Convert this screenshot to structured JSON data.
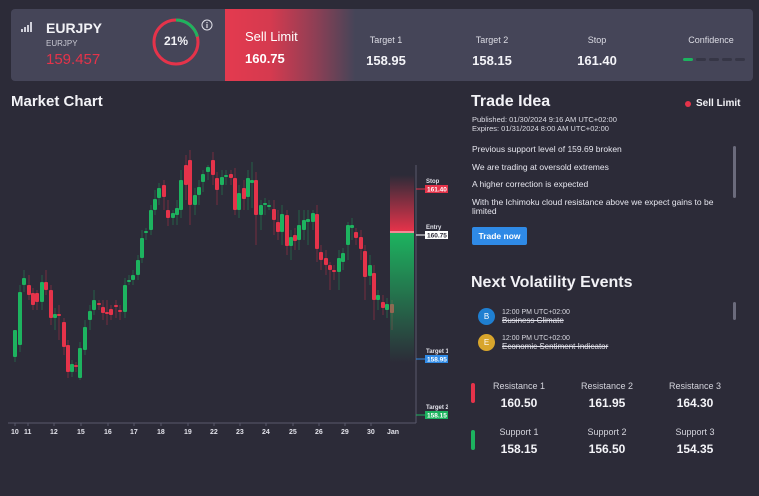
{
  "header": {
    "symbol": "EURJPY",
    "symbol_sub": "EURJPY",
    "price": "159.457",
    "gauge_percent": "21%",
    "gauge_value": 21,
    "order_type": "Sell Limit",
    "entry": "160.75",
    "metrics": [
      {
        "label": "Target 1",
        "value": "158.95"
      },
      {
        "label": "Target 2",
        "value": "158.15"
      },
      {
        "label": "Stop",
        "value": "161.40"
      }
    ],
    "confidence_label": "Confidence",
    "confidence_level": 1,
    "confidence_max": 5
  },
  "market_chart": {
    "title": "Market Chart",
    "x_labels": [
      "10",
      "11",
      "12",
      "15",
      "16",
      "17",
      "18",
      "19",
      "22",
      "23",
      "24",
      "25",
      "26",
      "29",
      "30",
      "Jan"
    ],
    "price_tags": [
      {
        "label": "Stop",
        "value": "161.40",
        "color": "#e5334a"
      },
      {
        "label": "Entry",
        "value": "160.75",
        "color": "#ffffff"
      },
      {
        "label": "Target 1",
        "value": "158.95",
        "color": "#2f8ae6"
      },
      {
        "label": "Target 2",
        "value": "158.15",
        "color": "#1db35f"
      }
    ]
  },
  "trade_idea": {
    "title": "Trade Idea",
    "badge": "Sell Limit",
    "published": "Published: 01/30/2024 9:16 AM UTC+02:00",
    "expires": "Expires: 01/31/2024 8:00 AM UTC+02:00",
    "points": [
      "Previous support level of 159.69 broken",
      "We are trading at oversold extremes",
      "A higher correction is expected",
      "With the Ichimoku cloud resistance above we expect gains to be limited"
    ],
    "button": "Trade now"
  },
  "volatility": {
    "title": "Next Volatility Events",
    "events": [
      {
        "initial": "B",
        "color": "#1f7fd1",
        "time": "12:00 PM UTC+02:00",
        "name": "Business Climate"
      },
      {
        "initial": "E",
        "color": "#d8a52c",
        "time": "12:00 PM UTC+02:00",
        "name": "Economic Sentiment Indicator"
      }
    ]
  },
  "levels": {
    "resistance": [
      {
        "label": "Resistance 1",
        "value": "160.50"
      },
      {
        "label": "Resistance 2",
        "value": "161.95"
      },
      {
        "label": "Resistance 3",
        "value": "164.30"
      }
    ],
    "support": [
      {
        "label": "Support 1",
        "value": "158.15"
      },
      {
        "label": "Support 2",
        "value": "156.50"
      },
      {
        "label": "Support 3",
        "value": "154.35"
      }
    ]
  },
  "colors": {
    "bull": "#1db35f",
    "bear": "#e5334a",
    "accent": "#2f8ae6"
  }
}
